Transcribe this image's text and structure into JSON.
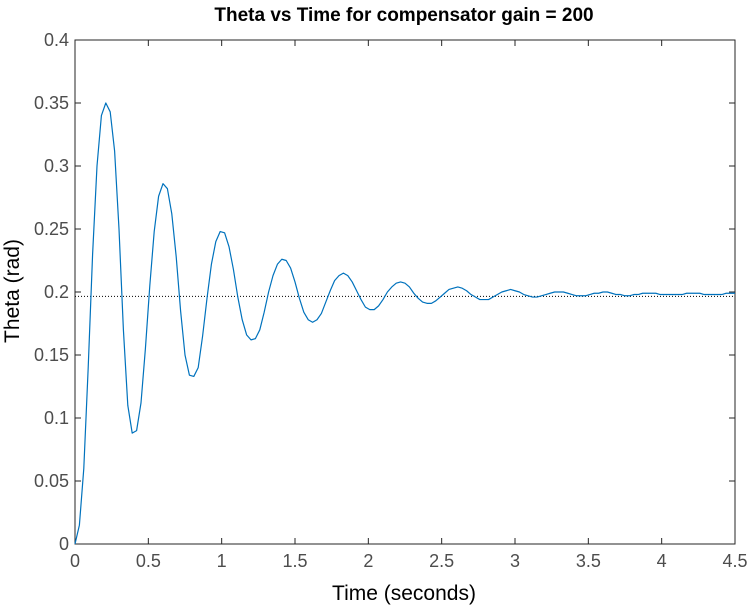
{
  "chart_data": {
    "type": "line",
    "title": "Theta vs Time for compensator gain = 200",
    "xlabel": "Time (seconds)",
    "ylabel": "Theta (rad)",
    "xlim": [
      0,
      4.5
    ],
    "ylim": [
      0,
      0.4
    ],
    "x_ticks": [
      0,
      0.5,
      1,
      1.5,
      2,
      2.5,
      3,
      3.5,
      4,
      4.5
    ],
    "x_tick_labels": [
      "0",
      "0.5",
      "1",
      "1.5",
      "2",
      "2.5",
      "3",
      "3.5",
      "4",
      "4.5"
    ],
    "y_ticks": [
      0,
      0.05,
      0.1,
      0.15,
      0.2,
      0.25,
      0.3,
      0.35,
      0.4
    ],
    "y_tick_labels": [
      "0",
      "0.05",
      "0.1",
      "0.15",
      "0.2",
      "0.25",
      "0.3",
      "0.35",
      "0.4"
    ],
    "grid": false,
    "box": true,
    "reference_line": {
      "y": 0.1965,
      "style": "dotted",
      "color": "#000000"
    },
    "series": [
      {
        "color": "#0072BD",
        "points": [
          [
            0.0,
            0.0
          ],
          [
            0.03,
            0.015
          ],
          [
            0.06,
            0.06
          ],
          [
            0.09,
            0.14
          ],
          [
            0.12,
            0.23
          ],
          [
            0.15,
            0.3
          ],
          [
            0.18,
            0.34
          ],
          [
            0.21,
            0.35
          ],
          [
            0.24,
            0.343
          ],
          [
            0.27,
            0.312
          ],
          [
            0.3,
            0.25
          ],
          [
            0.33,
            0.17
          ],
          [
            0.36,
            0.11
          ],
          [
            0.39,
            0.088
          ],
          [
            0.42,
            0.09
          ],
          [
            0.45,
            0.112
          ],
          [
            0.48,
            0.155
          ],
          [
            0.51,
            0.205
          ],
          [
            0.54,
            0.248
          ],
          [
            0.57,
            0.276
          ],
          [
            0.6,
            0.286
          ],
          [
            0.63,
            0.282
          ],
          [
            0.66,
            0.262
          ],
          [
            0.69,
            0.228
          ],
          [
            0.72,
            0.185
          ],
          [
            0.75,
            0.15
          ],
          [
            0.78,
            0.134
          ],
          [
            0.81,
            0.133
          ],
          [
            0.84,
            0.14
          ],
          [
            0.87,
            0.165
          ],
          [
            0.9,
            0.195
          ],
          [
            0.93,
            0.222
          ],
          [
            0.96,
            0.24
          ],
          [
            0.99,
            0.248
          ],
          [
            1.02,
            0.247
          ],
          [
            1.05,
            0.236
          ],
          [
            1.08,
            0.218
          ],
          [
            1.11,
            0.196
          ],
          [
            1.14,
            0.178
          ],
          [
            1.17,
            0.166
          ],
          [
            1.2,
            0.162
          ],
          [
            1.23,
            0.163
          ],
          [
            1.26,
            0.17
          ],
          [
            1.29,
            0.184
          ],
          [
            1.32,
            0.2
          ],
          [
            1.35,
            0.213
          ],
          [
            1.38,
            0.222
          ],
          [
            1.41,
            0.226
          ],
          [
            1.44,
            0.225
          ],
          [
            1.47,
            0.219
          ],
          [
            1.5,
            0.208
          ],
          [
            1.53,
            0.195
          ],
          [
            1.56,
            0.184
          ],
          [
            1.59,
            0.178
          ],
          [
            1.62,
            0.176
          ],
          [
            1.65,
            0.178
          ],
          [
            1.68,
            0.183
          ],
          [
            1.71,
            0.192
          ],
          [
            1.74,
            0.201
          ],
          [
            1.77,
            0.209
          ],
          [
            1.8,
            0.213
          ],
          [
            1.83,
            0.215
          ],
          [
            1.86,
            0.213
          ],
          [
            1.89,
            0.208
          ],
          [
            1.92,
            0.201
          ],
          [
            1.95,
            0.194
          ],
          [
            1.98,
            0.188
          ],
          [
            2.01,
            0.186
          ],
          [
            2.04,
            0.186
          ],
          [
            2.07,
            0.189
          ],
          [
            2.1,
            0.194
          ],
          [
            2.13,
            0.2
          ],
          [
            2.16,
            0.204
          ],
          [
            2.19,
            0.207
          ],
          [
            2.22,
            0.208
          ],
          [
            2.25,
            0.207
          ],
          [
            2.28,
            0.204
          ],
          [
            2.31,
            0.199
          ],
          [
            2.34,
            0.195
          ],
          [
            2.37,
            0.192
          ],
          [
            2.4,
            0.191
          ],
          [
            2.43,
            0.191
          ],
          [
            2.46,
            0.193
          ],
          [
            2.49,
            0.196
          ],
          [
            2.52,
            0.199
          ],
          [
            2.55,
            0.202
          ],
          [
            2.58,
            0.203
          ],
          [
            2.61,
            0.204
          ],
          [
            2.64,
            0.203
          ],
          [
            2.67,
            0.201
          ],
          [
            2.7,
            0.198
          ],
          [
            2.73,
            0.196
          ],
          [
            2.76,
            0.194
          ],
          [
            2.79,
            0.194
          ],
          [
            2.82,
            0.194
          ],
          [
            2.85,
            0.196
          ],
          [
            2.88,
            0.198
          ],
          [
            2.91,
            0.2
          ],
          [
            2.94,
            0.201
          ],
          [
            2.97,
            0.202
          ],
          [
            3.0,
            0.201
          ],
          [
            3.03,
            0.2
          ],
          [
            3.06,
            0.198
          ],
          [
            3.09,
            0.197
          ],
          [
            3.12,
            0.196
          ],
          [
            3.15,
            0.196
          ],
          [
            3.18,
            0.197
          ],
          [
            3.21,
            0.198
          ],
          [
            3.24,
            0.199
          ],
          [
            3.27,
            0.2
          ],
          [
            3.3,
            0.2
          ],
          [
            3.33,
            0.2
          ],
          [
            3.36,
            0.199
          ],
          [
            3.39,
            0.198
          ],
          [
            3.42,
            0.197
          ],
          [
            3.45,
            0.197
          ],
          [
            3.48,
            0.197
          ],
          [
            3.51,
            0.198
          ],
          [
            3.54,
            0.199
          ],
          [
            3.57,
            0.199
          ],
          [
            3.6,
            0.2
          ],
          [
            3.63,
            0.2
          ],
          [
            3.66,
            0.199
          ],
          [
            3.69,
            0.198
          ],
          [
            3.72,
            0.198
          ],
          [
            3.75,
            0.197
          ],
          [
            3.78,
            0.197
          ],
          [
            3.81,
            0.198
          ],
          [
            3.84,
            0.198
          ],
          [
            3.87,
            0.199
          ],
          [
            3.9,
            0.199
          ],
          [
            3.93,
            0.199
          ],
          [
            3.96,
            0.199
          ],
          [
            3.99,
            0.198
          ],
          [
            4.02,
            0.198
          ],
          [
            4.05,
            0.198
          ],
          [
            4.08,
            0.198
          ],
          [
            4.11,
            0.198
          ],
          [
            4.14,
            0.198
          ],
          [
            4.17,
            0.199
          ],
          [
            4.2,
            0.199
          ],
          [
            4.23,
            0.199
          ],
          [
            4.26,
            0.199
          ],
          [
            4.29,
            0.198
          ],
          [
            4.32,
            0.198
          ],
          [
            4.35,
            0.198
          ],
          [
            4.38,
            0.198
          ],
          [
            4.41,
            0.198
          ],
          [
            4.44,
            0.199
          ],
          [
            4.47,
            0.199
          ],
          [
            4.5,
            0.199
          ]
        ]
      }
    ]
  }
}
